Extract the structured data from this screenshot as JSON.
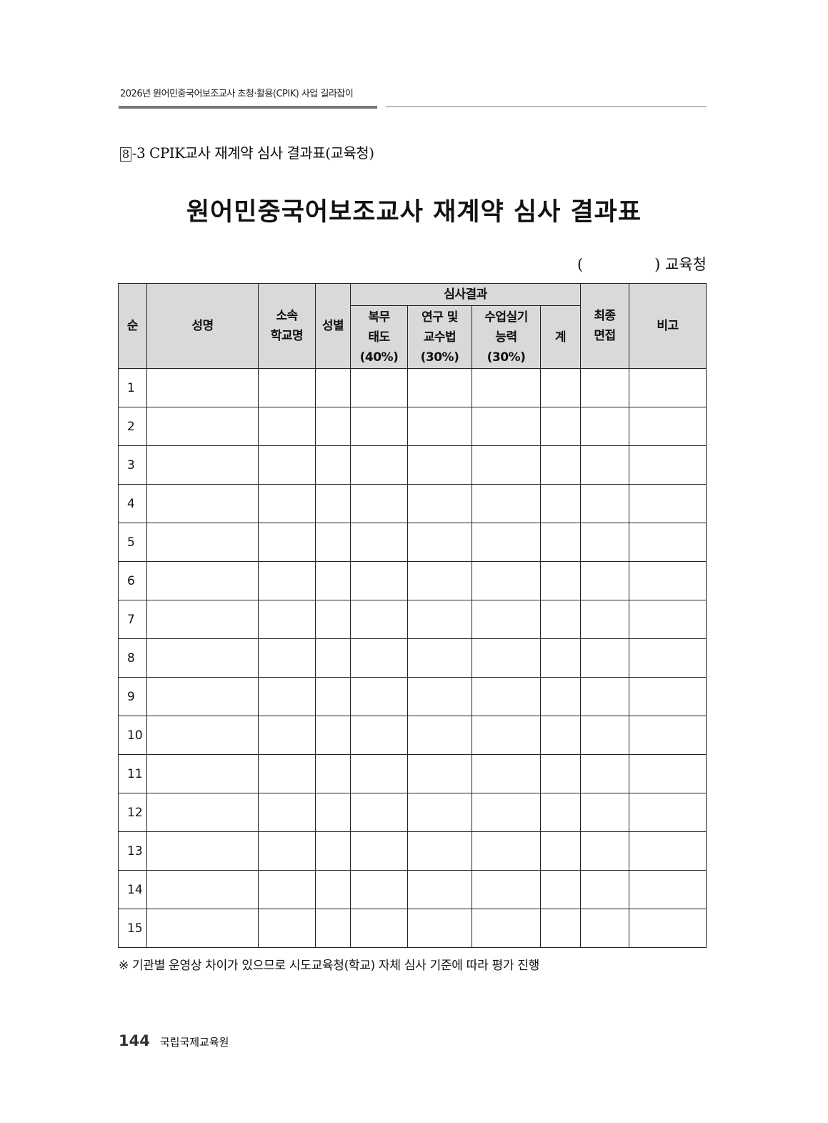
{
  "running_header": "2026년 원어민중국어보조교사 초청·활용(CPIK) 사업 길라잡이",
  "section": {
    "number": "8",
    "suffix": "-3 CPIK교사 재계약 심사 결과표(교육청)"
  },
  "title": "원어민중국어보조교사 재계약 심사 결과표",
  "office": {
    "open": "(",
    "close": ") 교육청"
  },
  "table": {
    "headers": {
      "seq": "순",
      "name": "성명",
      "school": [
        "소속",
        "학교명"
      ],
      "gender": "성별",
      "result_group": "심사결과",
      "duty": [
        "복무",
        "태도",
        "(40%)"
      ],
      "research": [
        "연구 및",
        "교수법",
        "(30%)"
      ],
      "teaching": [
        "수업실기",
        "능력",
        "(30%)"
      ],
      "total": "계",
      "interview": [
        "최종",
        "면접"
      ],
      "remarks": "비고"
    },
    "rows": [
      "1",
      "2",
      "3",
      "4",
      "5",
      "6",
      "7",
      "8",
      "9",
      "10",
      "11",
      "12",
      "13",
      "14",
      "15"
    ]
  },
  "note": "※ 기관별 운영상 차이가 있으므로 시도교육청(학교) 자체 심사 기준에 따라 평가 진행",
  "footer": {
    "page": "144",
    "org": "국립국제교육원"
  },
  "colors": {
    "header_bg": "#d9d9d9",
    "rule": "#777777"
  }
}
